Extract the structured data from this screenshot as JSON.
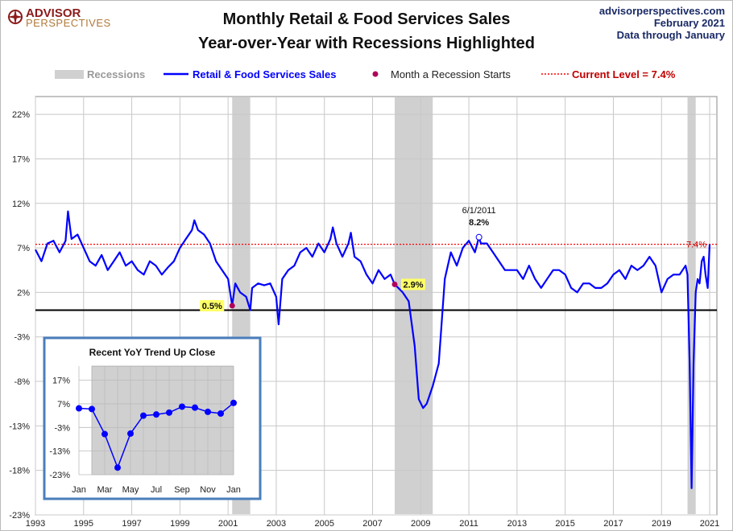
{
  "brand": {
    "line1": "ADVISOR",
    "line2": "PERSPECTIVES"
  },
  "source": {
    "site": "advisorperspectives.com",
    "date": "February 2021",
    "through": "Data through January"
  },
  "chart_data": [
    {
      "type": "line",
      "title": "Monthly Retail & Food Services Sales",
      "subtitle": "Year-over-Year with Recessions Highlighted",
      "xlim": [
        1993,
        2021.3
      ],
      "ylim": [
        -23,
        24
      ],
      "yticks": [
        22,
        17,
        12,
        7,
        2,
        -3,
        -8,
        -13,
        -18,
        -23
      ],
      "ytick_labels": [
        "22%",
        "17%",
        "12%",
        "7%",
        "2%",
        "-3%",
        "-8%",
        "-13%",
        "-18%",
        "-23%"
      ],
      "xticks": [
        1993,
        1995,
        1997,
        1999,
        2001,
        2003,
        2005,
        2007,
        2009,
        2011,
        2013,
        2015,
        2017,
        2019,
        2021
      ],
      "grid": true,
      "legend": {
        "position": "top",
        "recessions": "Recessions",
        "series": "Retail & Food Services Sales",
        "marker": "Month a Recession Starts",
        "current": "Current Level = 7.4%"
      },
      "colors": {
        "series": "#0000ff",
        "recession": "#d0d0d0",
        "current": "#ff0000",
        "marker": "#b0005a",
        "label_bg": "#ffff66"
      },
      "current_level": 7.4,
      "recessions": [
        [
          2001.17,
          2001.92
        ],
        [
          2007.92,
          2009.5
        ],
        [
          2020.08,
          2020.42
        ]
      ],
      "recession_starts": [
        {
          "x": 2001.17,
          "y": 0.5,
          "label": "0.5%"
        },
        {
          "x": 2007.92,
          "y": 2.9,
          "label": "2.9%"
        }
      ],
      "annotations": [
        {
          "x": 2011.42,
          "y": 8.2,
          "date": "6/1/2011",
          "value": "8.2%"
        },
        {
          "x": 2021.0,
          "y": 7.4,
          "value": "7.4%"
        }
      ],
      "series": [
        {
          "name": "Retail & Food Services Sales",
          "points": [
            [
              1993.0,
              6.8
            ],
            [
              1993.25,
              5.5
            ],
            [
              1993.5,
              7.5
            ],
            [
              1993.75,
              7.8
            ],
            [
              1994.0,
              6.5
            ],
            [
              1994.25,
              7.8
            ],
            [
              1994.35,
              11.1
            ],
            [
              1994.5,
              8.0
            ],
            [
              1994.75,
              8.5
            ],
            [
              1995.0,
              7.0
            ],
            [
              1995.25,
              5.5
            ],
            [
              1995.5,
              5.0
            ],
            [
              1995.75,
              6.2
            ],
            [
              1996.0,
              4.5
            ],
            [
              1996.25,
              5.5
            ],
            [
              1996.5,
              6.5
            ],
            [
              1996.75,
              5.0
            ],
            [
              1997.0,
              5.5
            ],
            [
              1997.25,
              4.5
            ],
            [
              1997.5,
              4.0
            ],
            [
              1997.75,
              5.5
            ],
            [
              1998.0,
              5.0
            ],
            [
              1998.25,
              4.0
            ],
            [
              1998.5,
              4.8
            ],
            [
              1998.75,
              5.5
            ],
            [
              1999.0,
              7.0
            ],
            [
              1999.25,
              8.0
            ],
            [
              1999.5,
              9.0
            ],
            [
              1999.6,
              10.1
            ],
            [
              1999.75,
              9.0
            ],
            [
              2000.0,
              8.5
            ],
            [
              2000.25,
              7.5
            ],
            [
              2000.5,
              5.5
            ],
            [
              2000.75,
              4.5
            ],
            [
              2001.0,
              3.5
            ],
            [
              2001.17,
              0.5
            ],
            [
              2001.3,
              3.0
            ],
            [
              2001.5,
              2.0
            ],
            [
              2001.75,
              1.5
            ],
            [
              2001.92,
              0.0
            ],
            [
              2002.0,
              2.5
            ],
            [
              2002.25,
              3.0
            ],
            [
              2002.5,
              2.8
            ],
            [
              2002.75,
              3.0
            ],
            [
              2003.0,
              1.5
            ],
            [
              2003.1,
              -1.6
            ],
            [
              2003.25,
              3.5
            ],
            [
              2003.5,
              4.5
            ],
            [
              2003.75,
              5.0
            ],
            [
              2004.0,
              6.5
            ],
            [
              2004.25,
              7.0
            ],
            [
              2004.5,
              6.0
            ],
            [
              2004.75,
              7.5
            ],
            [
              2005.0,
              6.5
            ],
            [
              2005.25,
              8.0
            ],
            [
              2005.35,
              9.3
            ],
            [
              2005.5,
              7.5
            ],
            [
              2005.75,
              6.0
            ],
            [
              2006.0,
              7.5
            ],
            [
              2006.1,
              8.7
            ],
            [
              2006.25,
              6.0
            ],
            [
              2006.5,
              5.5
            ],
            [
              2006.75,
              4.0
            ],
            [
              2007.0,
              3.0
            ],
            [
              2007.25,
              4.5
            ],
            [
              2007.5,
              3.5
            ],
            [
              2007.75,
              4.0
            ],
            [
              2007.92,
              2.9
            ],
            [
              2008.25,
              2.0
            ],
            [
              2008.5,
              1.0
            ],
            [
              2008.75,
              -4.0
            ],
            [
              2008.92,
              -10.0
            ],
            [
              2009.1,
              -11.0
            ],
            [
              2009.25,
              -10.5
            ],
            [
              2009.5,
              -8.5
            ],
            [
              2009.75,
              -6.0
            ],
            [
              2010.0,
              3.5
            ],
            [
              2010.25,
              6.5
            ],
            [
              2010.5,
              5.0
            ],
            [
              2010.75,
              7.0
            ],
            [
              2011.0,
              7.8
            ],
            [
              2011.25,
              6.5
            ],
            [
              2011.42,
              8.2
            ],
            [
              2011.5,
              7.5
            ],
            [
              2011.75,
              7.5
            ],
            [
              2012.0,
              6.5
            ],
            [
              2012.25,
              5.5
            ],
            [
              2012.5,
              4.5
            ],
            [
              2012.75,
              4.5
            ],
            [
              2013.0,
              4.5
            ],
            [
              2013.25,
              3.5
            ],
            [
              2013.5,
              5.0
            ],
            [
              2013.75,
              3.5
            ],
            [
              2014.0,
              2.5
            ],
            [
              2014.25,
              3.5
            ],
            [
              2014.5,
              4.5
            ],
            [
              2014.75,
              4.5
            ],
            [
              2015.0,
              4.0
            ],
            [
              2015.25,
              2.5
            ],
            [
              2015.5,
              2.0
            ],
            [
              2015.75,
              3.0
            ],
            [
              2016.0,
              3.0
            ],
            [
              2016.25,
              2.5
            ],
            [
              2016.5,
              2.5
            ],
            [
              2016.75,
              3.0
            ],
            [
              2017.0,
              4.0
            ],
            [
              2017.25,
              4.5
            ],
            [
              2017.5,
              3.5
            ],
            [
              2017.75,
              5.0
            ],
            [
              2018.0,
              4.5
            ],
            [
              2018.25,
              5.0
            ],
            [
              2018.5,
              6.0
            ],
            [
              2018.75,
              5.0
            ],
            [
              2019.0,
              2.0
            ],
            [
              2019.25,
              3.5
            ],
            [
              2019.5,
              4.0
            ],
            [
              2019.75,
              4.0
            ],
            [
              2020.0,
              5.0
            ],
            [
              2020.08,
              4.0
            ],
            [
              2020.17,
              -6.0
            ],
            [
              2020.25,
              -20.0
            ],
            [
              2020.33,
              -6.0
            ],
            [
              2020.42,
              2.0
            ],
            [
              2020.5,
              3.5
            ],
            [
              2020.58,
              3.0
            ],
            [
              2020.67,
              5.5
            ],
            [
              2020.75,
              6.0
            ],
            [
              2020.83,
              4.0
            ],
            [
              2020.92,
              2.5
            ],
            [
              2021.0,
              7.4
            ]
          ]
        }
      ]
    },
    {
      "type": "line",
      "title": "Recent  YoY Trend Up Close",
      "categories": [
        "Jan",
        "Feb",
        "Mar",
        "Apr",
        "May",
        "Jun",
        "Jul",
        "Aug",
        "Sep",
        "Oct",
        "Nov",
        "Dec",
        "Jan"
      ],
      "x_labels": [
        "Jan",
        "Mar",
        "May",
        "Jul",
        "Sep",
        "Nov",
        "Jan"
      ],
      "yticks": [
        17,
        7,
        -3,
        -13,
        -23
      ],
      "ytick_labels": [
        "17%",
        "7%",
        "-3%",
        "-13%",
        "-23%"
      ],
      "ylim": [
        -23,
        23
      ],
      "recession_shaded": true,
      "series": [
        {
          "name": "Retail & Food Services Sales",
          "values": [
            5.1,
            4.8,
            -5.8,
            -20.0,
            -5.6,
            2.0,
            2.5,
            3.3,
            5.8,
            5.4,
            3.6,
            2.9,
            7.4
          ]
        }
      ]
    }
  ]
}
